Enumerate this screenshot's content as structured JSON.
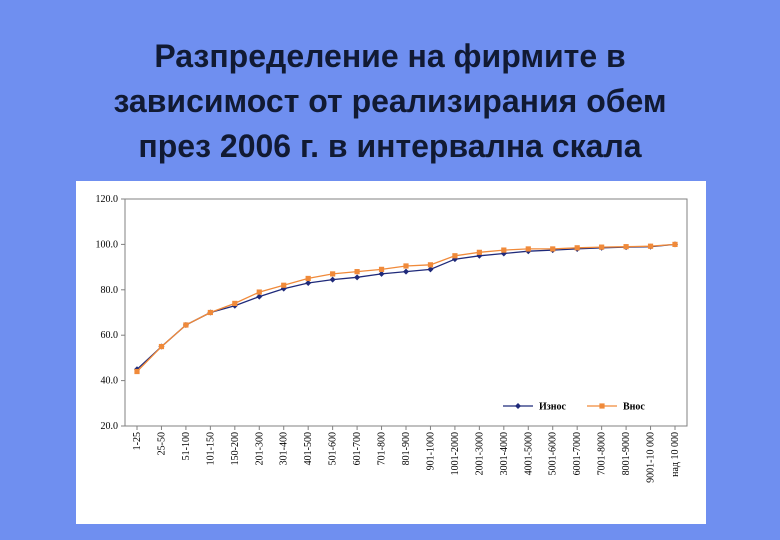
{
  "title": {
    "line1": "Разпределение на фирмите в",
    "line2": "зависимост от реализирания обем",
    "line3": "през 2006 г. в интервална скала"
  },
  "chart_data": {
    "type": "line",
    "categories": [
      "1-25",
      "25-50",
      "51-100",
      "101-150",
      "150-200",
      "201-300",
      "301-400",
      "401-500",
      "501-600",
      "601-700",
      "701-800",
      "801-900",
      "901-1000",
      "1001-2000",
      "2001-3000",
      "3001-4000",
      "4001-5000",
      "5001-6000",
      "6001-7000",
      "7001-8000",
      "8001-9000",
      "9001-10 000",
      "над 10 000"
    ],
    "series": [
      {
        "name": "Износ",
        "color": "#1f2a7a",
        "marker": "diamond",
        "values": [
          45.0,
          55.0,
          64.5,
          70.0,
          73.0,
          77.0,
          80.5,
          83.0,
          84.5,
          85.5,
          87.0,
          88.0,
          89.0,
          93.5,
          95.0,
          96.0,
          97.0,
          97.5,
          98.0,
          98.5,
          98.8,
          99.0,
          100.0
        ]
      },
      {
        "name": "Внос",
        "color": "#f08a3a",
        "marker": "square",
        "values": [
          44.0,
          55.0,
          64.5,
          70.0,
          74.0,
          79.0,
          82.0,
          85.0,
          87.0,
          88.0,
          89.0,
          90.5,
          91.0,
          95.0,
          96.5,
          97.5,
          98.0,
          98.0,
          98.5,
          98.8,
          99.0,
          99.2,
          100.0
        ]
      }
    ],
    "y_ticks": [
      "120.0",
      "100.0",
      "80.0",
      "60.0",
      "40.0",
      "20.0"
    ],
    "ylim": [
      20,
      120
    ],
    "grid": false,
    "legend_position": "bottom-right"
  }
}
